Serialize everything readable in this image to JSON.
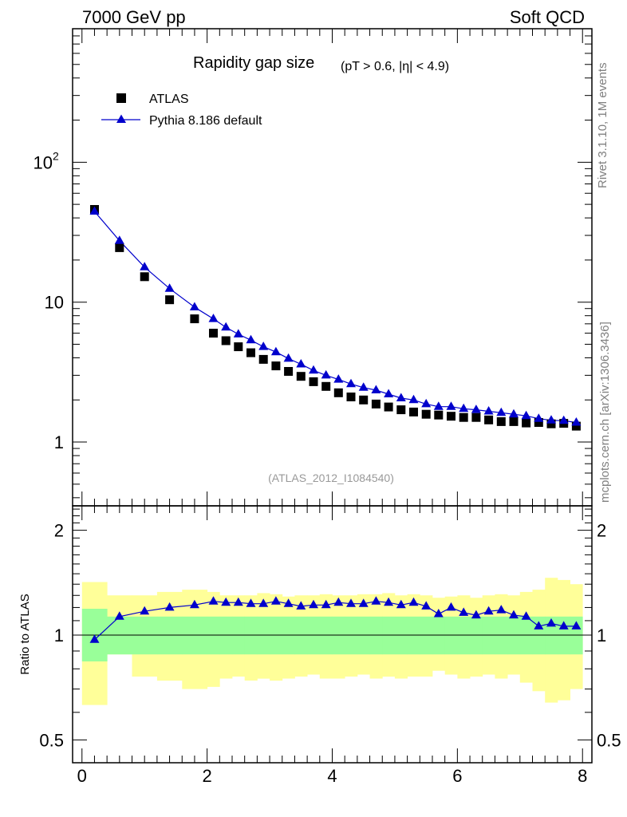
{
  "header": {
    "left": "7000 GeV pp",
    "right": "Soft QCD"
  },
  "title": {
    "main": "Rapidity gap size",
    "cuts": "(pT > 0.6, |η| < 4.9)"
  },
  "legend": {
    "data_label": "ATLAS",
    "mc_label": "Pythia 8.186 default"
  },
  "watermark": "(ATLAS_2012_I1084540)",
  "side_text": {
    "rivet": "Rivet 3.1.10,  1M events",
    "site": "mcplots.cern.ch [arXiv:1306.3436]"
  },
  "colors": {
    "mc_line": "#0000cc",
    "data_marker": "#000000",
    "band_inner": "#99ff99",
    "band_outer": "#ffff99"
  },
  "chart_data": [
    {
      "type": "scatter",
      "panel": "main",
      "title": "Rapidity gap size (pT > 0.6, |η| < 4.9)",
      "yscale": "log",
      "xlim": [
        -0.15,
        8.15
      ],
      "ylim": [
        0.35,
        900
      ],
      "ytick_labels": [
        "1",
        "10",
        "10^2"
      ],
      "ytick_values": [
        1,
        10,
        100
      ],
      "series": [
        {
          "name": "ATLAS",
          "marker": "square",
          "x": [
            0.2,
            0.6,
            1.0,
            1.4,
            1.8,
            2.1,
            2.3,
            2.5,
            2.7,
            2.9,
            3.1,
            3.3,
            3.5,
            3.7,
            3.9,
            4.1,
            4.3,
            4.5,
            4.7,
            4.9,
            5.1,
            5.3,
            5.5,
            5.7,
            5.9,
            6.1,
            6.3,
            6.5,
            6.7,
            6.9,
            7.1,
            7.3,
            7.5,
            7.7,
            7.9
          ],
          "y": [
            46,
            24.5,
            15.2,
            10.4,
            7.6,
            6.0,
            5.3,
            4.8,
            4.35,
            3.9,
            3.5,
            3.2,
            2.95,
            2.7,
            2.5,
            2.25,
            2.1,
            2.0,
            1.87,
            1.78,
            1.7,
            1.64,
            1.58,
            1.56,
            1.53,
            1.5,
            1.5,
            1.44,
            1.4,
            1.4,
            1.37,
            1.38,
            1.35,
            1.36,
            1.3
          ]
        },
        {
          "name": "Pythia 8.186 default",
          "marker": "triangle",
          "x": [
            0.2,
            0.6,
            1.0,
            1.4,
            1.8,
            2.1,
            2.3,
            2.5,
            2.7,
            2.9,
            3.1,
            3.3,
            3.5,
            3.7,
            3.9,
            4.1,
            4.3,
            4.5,
            4.7,
            4.9,
            5.1,
            5.3,
            5.5,
            5.7,
            5.9,
            6.1,
            6.3,
            6.5,
            6.7,
            6.9,
            7.1,
            7.3,
            7.5,
            7.7,
            7.9
          ],
          "y": [
            44.5,
            27.5,
            17.8,
            12.5,
            9.2,
            7.6,
            6.6,
            5.9,
            5.35,
            4.8,
            4.4,
            3.95,
            3.6,
            3.25,
            3.0,
            2.8,
            2.6,
            2.45,
            2.35,
            2.2,
            2.06,
            2.0,
            1.87,
            1.79,
            1.79,
            1.73,
            1.7,
            1.66,
            1.62,
            1.58,
            1.54,
            1.47,
            1.43,
            1.42,
            1.38
          ]
        }
      ]
    },
    {
      "type": "line",
      "panel": "ratio",
      "ylabel": "Ratio to ATLAS",
      "xlim": [
        -0.15,
        8.15
      ],
      "ylim": [
        0.43,
        2.35
      ],
      "yscale": "log",
      "xtick_labels": [
        "0",
        "2",
        "4",
        "6",
        "8"
      ],
      "xtick_values": [
        0,
        2,
        4,
        6,
        8
      ],
      "ytick_labels": [
        "0.5",
        "1",
        "2"
      ],
      "ytick_values": [
        0.5,
        1,
        2
      ],
      "reference": 1,
      "bands": {
        "edges": [
          0,
          0.4,
          0.8,
          1.2,
          1.6,
          2.0,
          2.2,
          2.4,
          2.6,
          2.8,
          3.0,
          3.2,
          3.4,
          3.6,
          3.8,
          4.0,
          4.2,
          4.4,
          4.6,
          4.8,
          5.0,
          5.2,
          5.4,
          5.6,
          5.8,
          6.0,
          6.2,
          6.4,
          6.6,
          6.8,
          7.0,
          7.2,
          7.4,
          7.6,
          7.8,
          8.0
        ],
        "inner_low": [
          0.84,
          0.88,
          0.88,
          0.88,
          0.88,
          0.88,
          0.88,
          0.88,
          0.88,
          0.88,
          0.88,
          0.88,
          0.88,
          0.88,
          0.88,
          0.88,
          0.88,
          0.88,
          0.88,
          0.88,
          0.88,
          0.88,
          0.88,
          0.88,
          0.88,
          0.88,
          0.88,
          0.88,
          0.88,
          0.88,
          0.88,
          0.88,
          0.88,
          0.88,
          0.88
        ],
        "inner_high": [
          1.19,
          1.13,
          1.13,
          1.13,
          1.13,
          1.13,
          1.13,
          1.13,
          1.13,
          1.13,
          1.13,
          1.13,
          1.13,
          1.13,
          1.13,
          1.13,
          1.13,
          1.13,
          1.13,
          1.13,
          1.13,
          1.13,
          1.13,
          1.13,
          1.13,
          1.13,
          1.13,
          1.13,
          1.13,
          1.13,
          1.13,
          1.13,
          1.13,
          1.13,
          1.13
        ],
        "outer_low": [
          0.63,
          0.88,
          0.76,
          0.74,
          0.7,
          0.71,
          0.75,
          0.76,
          0.74,
          0.75,
          0.74,
          0.75,
          0.76,
          0.77,
          0.75,
          0.75,
          0.76,
          0.77,
          0.75,
          0.76,
          0.75,
          0.76,
          0.76,
          0.79,
          0.77,
          0.75,
          0.76,
          0.77,
          0.75,
          0.77,
          0.73,
          0.69,
          0.64,
          0.65,
          0.7
        ],
        "outer_high": [
          1.42,
          1.3,
          1.3,
          1.33,
          1.35,
          1.33,
          1.3,
          1.3,
          1.3,
          1.32,
          1.31,
          1.29,
          1.3,
          1.3,
          1.31,
          1.3,
          1.3,
          1.31,
          1.31,
          1.32,
          1.3,
          1.31,
          1.3,
          1.28,
          1.29,
          1.3,
          1.28,
          1.3,
          1.31,
          1.3,
          1.33,
          1.35,
          1.46,
          1.44,
          1.4
        ]
      },
      "series": [
        {
          "name": "Pythia 8.186 default",
          "x": [
            0.2,
            0.6,
            1.0,
            1.4,
            1.8,
            2.1,
            2.3,
            2.5,
            2.7,
            2.9,
            3.1,
            3.3,
            3.5,
            3.7,
            3.9,
            4.1,
            4.3,
            4.5,
            4.7,
            4.9,
            5.1,
            5.3,
            5.5,
            5.7,
            5.9,
            6.1,
            6.3,
            6.5,
            6.7,
            6.9,
            7.1,
            7.3,
            7.5,
            7.7,
            7.9
          ],
          "y": [
            0.97,
            1.13,
            1.17,
            1.2,
            1.22,
            1.25,
            1.24,
            1.24,
            1.23,
            1.23,
            1.25,
            1.23,
            1.21,
            1.22,
            1.22,
            1.24,
            1.23,
            1.23,
            1.25,
            1.24,
            1.22,
            1.24,
            1.21,
            1.15,
            1.2,
            1.16,
            1.14,
            1.17,
            1.18,
            1.14,
            1.13,
            1.06,
            1.08,
            1.06,
            1.06
          ]
        }
      ]
    }
  ]
}
